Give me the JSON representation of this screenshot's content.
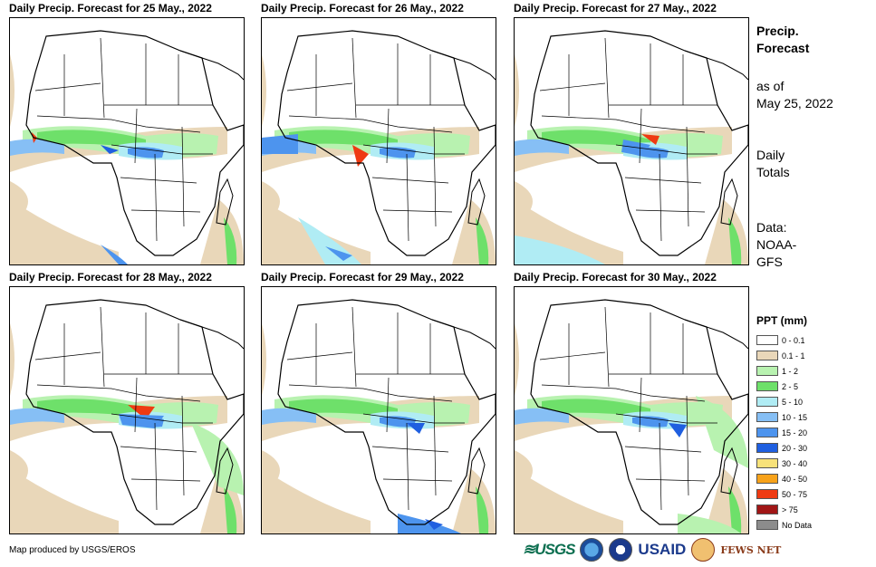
{
  "panels": [
    {
      "title": "Daily Precip. Forecast for 25 May., 2022"
    },
    {
      "title": "Daily Precip. Forecast for 26 May., 2022"
    },
    {
      "title": "Daily Precip. Forecast for 27 May., 2022"
    },
    {
      "title": "Daily Precip. Forecast for 28 May., 2022"
    },
    {
      "title": "Daily Precip. Forecast for 29 May., 2022"
    },
    {
      "title": "Daily Precip. Forecast for 30 May., 2022"
    }
  ],
  "sidebar": {
    "heading_line1": "Precip.",
    "heading_line2": "Forecast",
    "asof_line1": "as of",
    "asof_line2": "May 25, 2022",
    "daily_line1": "Daily",
    "daily_line2": "Totals",
    "data_line1": "Data:",
    "data_line2": "NOAA-",
    "data_line3": "GFS"
  },
  "legend": {
    "title": "PPT (mm)",
    "items": [
      {
        "label": "0 - 0.1",
        "color": "#ffffff"
      },
      {
        "label": "0.1 - 1",
        "color": "#e9d7b9"
      },
      {
        "label": "1 - 2",
        "color": "#b8f2b0"
      },
      {
        "label": "2 - 5",
        "color": "#6ee06a"
      },
      {
        "label": "5 - 10",
        "color": "#b0ecf4"
      },
      {
        "label": "10 - 15",
        "color": "#86bff5"
      },
      {
        "label": "15 - 20",
        "color": "#4d94ee"
      },
      {
        "label": "20 - 30",
        "color": "#1f5fe0"
      },
      {
        "label": "30 - 40",
        "color": "#f7e27a"
      },
      {
        "label": "40 - 50",
        "color": "#f7a21a"
      },
      {
        "label": "50 - 75",
        "color": "#ef3a12"
      },
      {
        "label": "> 75",
        "color": "#a11616"
      },
      {
        "label": "No Data",
        "color": "#8c8c8c"
      }
    ]
  },
  "footer": {
    "credit": "Map produced by USGS/EROS",
    "logo_usgs": "≋USGS",
    "logo_usaid": "USAID",
    "logo_fews": "FEWS NET"
  }
}
